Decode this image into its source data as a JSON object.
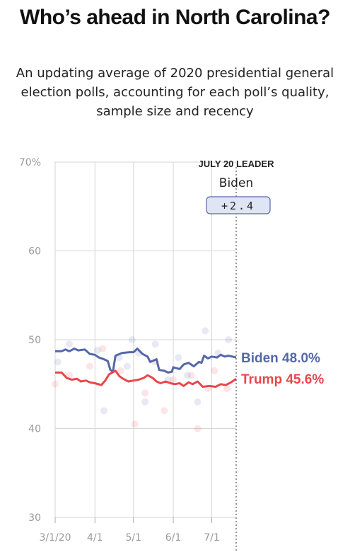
{
  "header": {
    "title": "Who’s ahead in North Carolina?",
    "subtitle": "An updating average of 2020 presidential general election polls, accounting for each poll’s quality, sample size and recency"
  },
  "leader": {
    "label": "JULY 20 LEADER",
    "name": "Biden",
    "margin": "+2.4"
  },
  "colors": {
    "biden": "#5468a8",
    "trump": "#e8474b",
    "grid": "#d6d6d6",
    "axis_text": "#9a9a9a"
  },
  "chart_data": {
    "type": "line",
    "title": "Who’s ahead in North Carolina?",
    "subtitle": "An updating average of 2020 presidential general election polls, accounting for each poll’s quality, sample size and recency",
    "ylim": [
      30,
      70
    ],
    "yticks": [
      30,
      40,
      50,
      60,
      70
    ],
    "ytick_labels": [
      "30",
      "40",
      "50",
      "60",
      "70%"
    ],
    "xlim": [
      "2020-03-01",
      "2020-07-20"
    ],
    "xticks": [
      "2020-03-01",
      "2020-04-01",
      "2020-05-01",
      "2020-06-01",
      "2020-07-01"
    ],
    "xtick_labels": [
      "3/1/20",
      "4/1",
      "5/1",
      "6/1",
      "7/1"
    ],
    "grid": true,
    "series": [
      {
        "name": "Biden",
        "end_label": "Biden 48.0%",
        "color": "#5468a8",
        "points": [
          [
            "2020-03-01",
            48.7
          ],
          [
            "2020-03-06",
            48.7
          ],
          [
            "2020-03-09",
            48.9
          ],
          [
            "2020-03-12",
            48.7
          ],
          [
            "2020-03-16",
            49.0
          ],
          [
            "2020-03-19",
            48.8
          ],
          [
            "2020-03-24",
            48.9
          ],
          [
            "2020-03-28",
            48.4
          ],
          [
            "2020-04-01",
            48.3
          ],
          [
            "2020-04-04",
            48.0
          ],
          [
            "2020-04-08",
            47.8
          ],
          [
            "2020-04-11",
            47.6
          ],
          [
            "2020-04-13",
            46.6
          ],
          [
            "2020-04-15",
            46.4
          ],
          [
            "2020-04-17",
            48.2
          ],
          [
            "2020-04-22",
            48.5
          ],
          [
            "2020-04-28",
            48.6
          ],
          [
            "2020-05-01",
            48.6
          ],
          [
            "2020-05-04",
            49.0
          ],
          [
            "2020-05-08",
            48.4
          ],
          [
            "2020-05-12",
            48.1
          ],
          [
            "2020-05-14",
            47.5
          ],
          [
            "2020-05-19",
            47.8
          ],
          [
            "2020-05-21",
            46.6
          ],
          [
            "2020-05-25",
            46.5
          ],
          [
            "2020-05-28",
            46.3
          ],
          [
            "2020-05-31",
            46.4
          ],
          [
            "2020-06-01",
            46.9
          ],
          [
            "2020-06-06",
            46.7
          ],
          [
            "2020-06-09",
            47.2
          ],
          [
            "2020-06-13",
            47.4
          ],
          [
            "2020-06-17",
            47.0
          ],
          [
            "2020-06-21",
            47.5
          ],
          [
            "2020-06-23",
            47.4
          ],
          [
            "2020-06-25",
            48.2
          ],
          [
            "2020-06-28",
            47.9
          ],
          [
            "2020-07-01",
            48.1
          ],
          [
            "2020-07-05",
            48.0
          ],
          [
            "2020-07-08",
            48.3
          ],
          [
            "2020-07-11",
            48.1
          ],
          [
            "2020-07-14",
            48.2
          ],
          [
            "2020-07-20",
            48.0
          ]
        ],
        "polls": [
          [
            "2020-03-03",
            47.5
          ],
          [
            "2020-03-12",
            49.5
          ],
          [
            "2020-04-03",
            48.8
          ],
          [
            "2020-04-08",
            42.0
          ],
          [
            "2020-04-20",
            48.0
          ],
          [
            "2020-04-26",
            47.0
          ],
          [
            "2020-04-30",
            50.0
          ],
          [
            "2020-05-05",
            48.5
          ],
          [
            "2020-05-10",
            43.0
          ],
          [
            "2020-05-18",
            49.5
          ],
          [
            "2020-05-28",
            45.5
          ],
          [
            "2020-06-05",
            48.0
          ],
          [
            "2020-06-12",
            46.0
          ],
          [
            "2020-06-20",
            43.0
          ],
          [
            "2020-06-26",
            51.0
          ],
          [
            "2020-07-06",
            48.5
          ],
          [
            "2020-07-14",
            50.0
          ]
        ]
      },
      {
        "name": "Trump",
        "end_label": "Trump 45.6%",
        "color": "#e8474b",
        "points": [
          [
            "2020-03-01",
            46.3
          ],
          [
            "2020-03-06",
            46.3
          ],
          [
            "2020-03-08",
            46.0
          ],
          [
            "2020-03-10",
            45.7
          ],
          [
            "2020-03-14",
            45.5
          ],
          [
            "2020-03-18",
            45.6
          ],
          [
            "2020-03-21",
            45.3
          ],
          [
            "2020-03-25",
            45.4
          ],
          [
            "2020-03-28",
            45.2
          ],
          [
            "2020-04-01",
            45.1
          ],
          [
            "2020-04-06",
            44.9
          ],
          [
            "2020-04-09",
            45.4
          ],
          [
            "2020-04-12",
            46.1
          ],
          [
            "2020-04-17",
            46.5
          ],
          [
            "2020-04-20",
            45.9
          ],
          [
            "2020-04-23",
            45.6
          ],
          [
            "2020-04-27",
            45.3
          ],
          [
            "2020-05-01",
            45.4
          ],
          [
            "2020-05-05",
            45.5
          ],
          [
            "2020-05-09",
            45.7
          ],
          [
            "2020-05-12",
            46.0
          ],
          [
            "2020-05-16",
            45.7
          ],
          [
            "2020-05-19",
            45.3
          ],
          [
            "2020-05-22",
            45.1
          ],
          [
            "2020-05-26",
            45.3
          ],
          [
            "2020-05-30",
            45.1
          ],
          [
            "2020-06-02",
            45.0
          ],
          [
            "2020-06-06",
            45.1
          ],
          [
            "2020-06-09",
            44.8
          ],
          [
            "2020-06-13",
            45.2
          ],
          [
            "2020-06-16",
            45.0
          ],
          [
            "2020-06-20",
            45.3
          ],
          [
            "2020-06-24",
            44.7
          ],
          [
            "2020-06-29",
            44.8
          ],
          [
            "2020-07-04",
            44.7
          ],
          [
            "2020-07-08",
            45.0
          ],
          [
            "2020-07-12",
            44.9
          ],
          [
            "2020-07-16",
            45.2
          ],
          [
            "2020-07-20",
            45.6
          ]
        ],
        "polls": [
          [
            "2020-03-01",
            45.0
          ],
          [
            "2020-03-12",
            46.0
          ],
          [
            "2020-03-28",
            47.0
          ],
          [
            "2020-04-07",
            49.0
          ],
          [
            "2020-04-21",
            46.5
          ],
          [
            "2020-05-02",
            40.5
          ],
          [
            "2020-05-10",
            44.0
          ],
          [
            "2020-05-18",
            47.5
          ],
          [
            "2020-05-25",
            42.0
          ],
          [
            "2020-06-01",
            45.5
          ],
          [
            "2020-06-15",
            46.0
          ],
          [
            "2020-06-20",
            40.0
          ],
          [
            "2020-06-28",
            44.5
          ],
          [
            "2020-07-03",
            46.5
          ],
          [
            "2020-07-13",
            44.5
          ]
        ]
      }
    ]
  }
}
